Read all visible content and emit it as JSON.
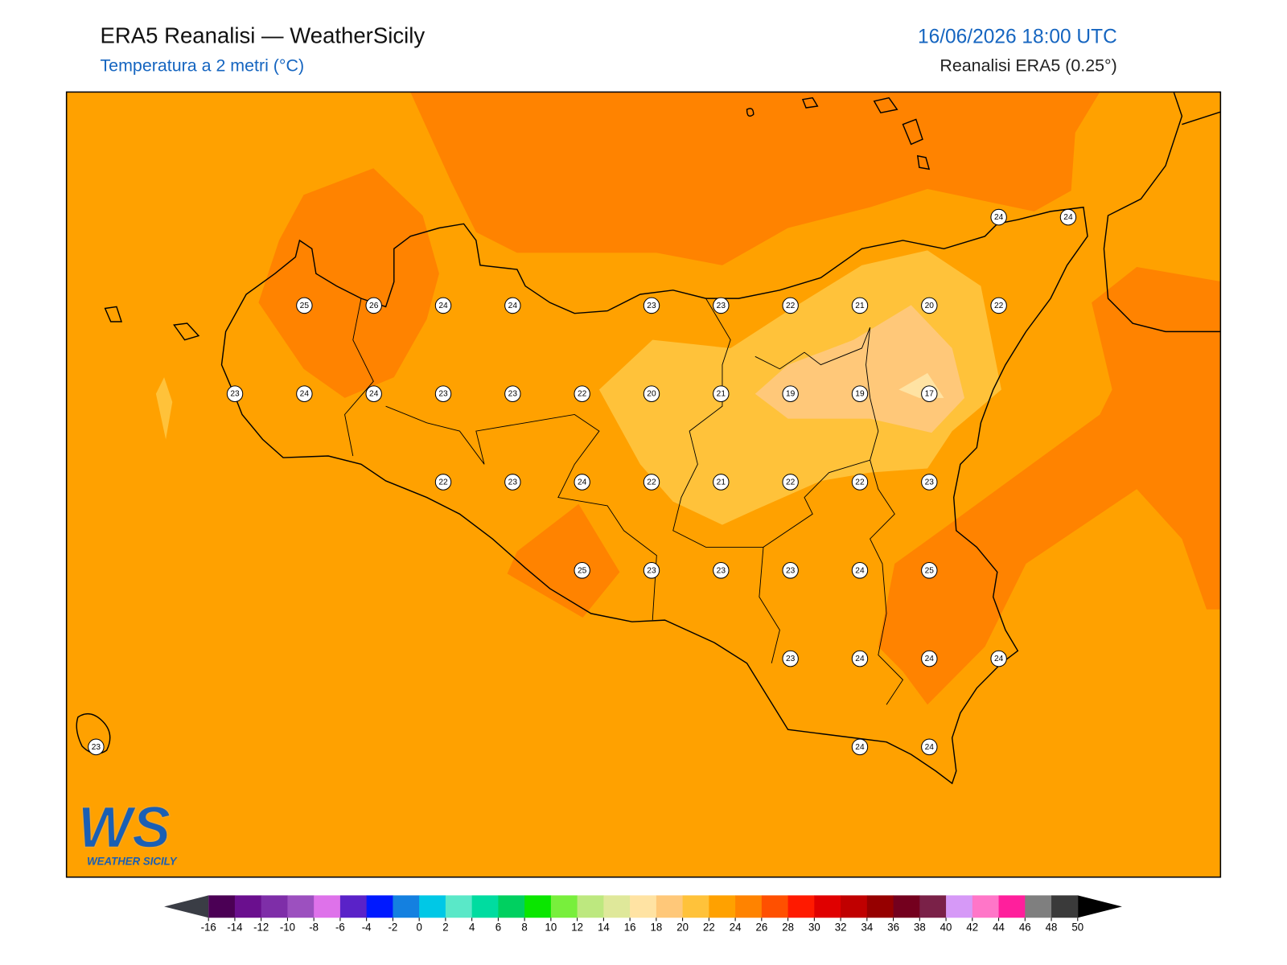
{
  "header": {
    "title": "ERA5 Reanalisi — WeatherSicily",
    "subtitle": "Temperatura a 2 metri (°C)",
    "datetime": "16/06/2026 18:00 UTC",
    "source": "Reanalisi ERA5 (0.25°)"
  },
  "logo": {
    "mark": "WS",
    "name": "WEATHER SICILY"
  },
  "station_grid": [
    [
      null,
      null,
      null,
      null,
      null,
      null,
      null,
      null,
      null,
      null,
      null,
      null,
      null,
      24,
      24
    ],
    [
      null,
      null,
      null,
      25,
      26,
      24,
      24,
      null,
      23,
      23,
      22,
      21,
      20,
      22,
      null
    ],
    [
      null,
      null,
      23,
      24,
      24,
      23,
      23,
      22,
      20,
      21,
      19,
      19,
      17,
      null,
      null
    ],
    [
      null,
      null,
      null,
      null,
      null,
      22,
      23,
      24,
      22,
      21,
      22,
      22,
      23,
      null,
      null
    ],
    [
      null,
      null,
      null,
      null,
      null,
      null,
      null,
      25,
      23,
      23,
      23,
      24,
      25,
      null,
      null
    ],
    [
      null,
      null,
      null,
      null,
      null,
      null,
      null,
      null,
      null,
      null,
      23,
      24,
      24,
      24,
      null
    ],
    [
      23,
      null,
      null,
      null,
      null,
      null,
      null,
      null,
      null,
      null,
      null,
      24,
      24,
      null,
      null
    ]
  ],
  "colorbar": {
    "ticks": [
      -16,
      -14,
      -12,
      -10,
      -8,
      -6,
      -4,
      -2,
      0,
      2,
      4,
      6,
      8,
      10,
      12,
      14,
      16,
      18,
      20,
      22,
      24,
      26,
      28,
      30,
      32,
      34,
      36,
      38,
      40,
      42,
      44,
      46,
      48,
      50
    ],
    "colors": [
      "#4b0055",
      "#6a0f8e",
      "#7e2ea8",
      "#9c50bf",
      "#de72ea",
      "#5a22c8",
      "#0019ff",
      "#1480e0",
      "#00c8e6",
      "#5ae8c8",
      "#00dca0",
      "#00d060",
      "#0ae600",
      "#78ef3c",
      "#bde87f",
      "#dfe89a",
      "#ffe3a3",
      "#ffc879",
      "#ffc23a",
      "#ffa100",
      "#ff8300",
      "#ff5000",
      "#ff1a00",
      "#e00000",
      "#c00000",
      "#960000",
      "#74001e",
      "#7a2148",
      "#d699f7",
      "#ff76c8",
      "#ff1f9c",
      "#7f7f7f",
      "#3a3a3a"
    ],
    "under_color": "#3a3d45",
    "over_color": "#000000"
  }
}
